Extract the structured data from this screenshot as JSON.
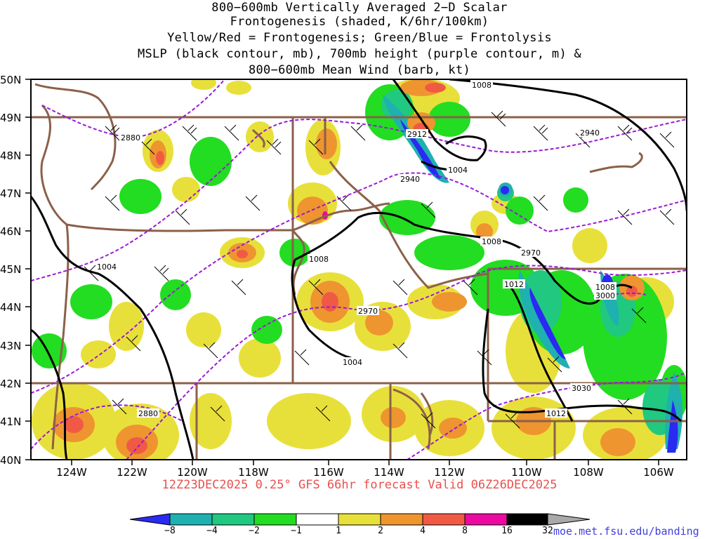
{
  "title": {
    "line1": "800−600mb Vertically Averaged 2−D Scalar",
    "line2": "Frontogenesis (shaded, K/6hr/100km)",
    "line3": "Yellow/Red = Frontogenesis;  Green/Blue = Frontolysis",
    "line4": "MSLP (black contour, mb), 700mb height (purple contour, m) &",
    "line5": "800−600mb Mean Wind (barb, kt)"
  },
  "valid_text": "12Z23DEC2025 0.25° GFS 66hr forecast Valid 06Z26DEC2025",
  "credit": "moe.met.fsu.edu/banding",
  "lat_labels": [
    "50N",
    "49N",
    "48N",
    "47N",
    "46N",
    "45N",
    "44N",
    "43N",
    "42N",
    "41N",
    "40N"
  ],
  "lon_labels": [
    "124W",
    "122W",
    "120W",
    "118W",
    "116W",
    "114W",
    "112W",
    "110W",
    "108W",
    "106W"
  ],
  "mslp_labels": [
    "1008",
    "1004",
    "1004",
    "1008",
    "1008",
    "1012",
    "1008",
    "1004",
    "1012"
  ],
  "height_labels": [
    "2880",
    "2940",
    "2940",
    "2970",
    "2970",
    "2880",
    "3000",
    "3030"
  ],
  "extra_label": "2912",
  "colorbar": {
    "ticks": [
      "−8",
      "−4",
      "−2",
      "−1",
      "1",
      "2",
      "4",
      "8",
      "16",
      "32"
    ],
    "colors": [
      "#2a2af2",
      "#1fb0b0",
      "#20c880",
      "#22dd22",
      "#ffffff",
      "#e8e03a",
      "#ee9530",
      "#f05a45",
      "#ea0aa0",
      "#000000",
      "#a9a9a9"
    ]
  },
  "palette": {
    "yellow": "#e8e03a",
    "orange": "#ee9530",
    "red": "#f05a45",
    "magenta": "#ea0aa0",
    "green": "#22dd22",
    "seagreen": "#20c880",
    "teal": "#1fb0b0",
    "blue": "#2a2af2",
    "state_border": "#8b6049",
    "height_contour": "#9a1ad6",
    "mslp_contour": "#000000"
  }
}
